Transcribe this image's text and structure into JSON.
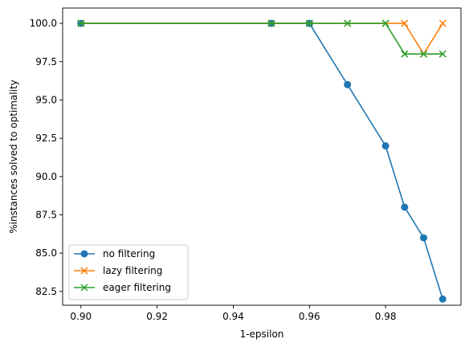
{
  "chart_data": {
    "type": "line",
    "title": "",
    "xlabel": "1-epsilon",
    "ylabel": "%instances solved to optimality",
    "xlim": [
      0.8952,
      0.9998
    ],
    "ylim": [
      81.6,
      101.0
    ],
    "xticks": [
      0.9,
      0.92,
      0.94,
      0.96,
      0.98
    ],
    "xtick_labels": [
      "0.90",
      "0.92",
      "0.94",
      "0.96",
      "0.98"
    ],
    "yticks": [
      82.5,
      85.0,
      87.5,
      90.0,
      92.5,
      95.0,
      97.5,
      100.0
    ],
    "ytick_labels": [
      "82.5",
      "85.0",
      "87.5",
      "90.0",
      "92.5",
      "95.0",
      "97.5",
      "100.0"
    ],
    "legend_position": "lower-left",
    "grid": false,
    "series": [
      {
        "name": "no filtering",
        "color": "#1f77b4",
        "marker": "circle",
        "x": [
          0.9,
          0.95,
          0.96,
          0.97,
          0.98,
          0.985,
          0.99,
          0.995
        ],
        "y": [
          100,
          100,
          100,
          96,
          92,
          88,
          86,
          82
        ]
      },
      {
        "name": "lazy filtering",
        "color": "#ff7f0e",
        "marker": "x",
        "x": [
          0.9,
          0.95,
          0.96,
          0.97,
          0.98,
          0.985,
          0.99,
          0.995
        ],
        "y": [
          100,
          100,
          100,
          100,
          100,
          100,
          98,
          100
        ]
      },
      {
        "name": "eager filtering",
        "color": "#2ca02c",
        "marker": "x",
        "x": [
          0.9,
          0.95,
          0.96,
          0.97,
          0.98,
          0.985,
          0.99,
          0.995
        ],
        "y": [
          100,
          100,
          100,
          100,
          100,
          98,
          98,
          98
        ]
      }
    ]
  }
}
